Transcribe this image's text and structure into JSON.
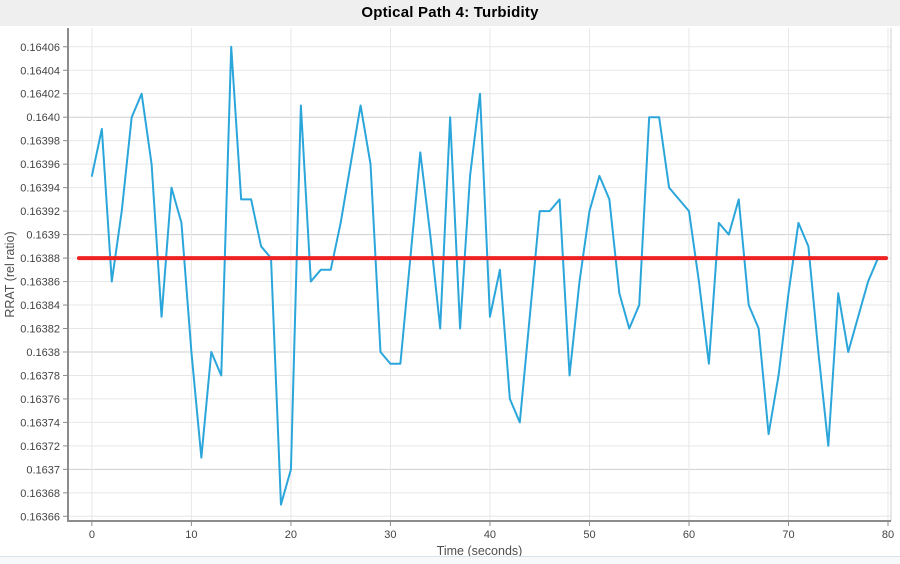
{
  "header": {
    "title": "Optical Path 4: Turbidity"
  },
  "chart_data": {
    "type": "line",
    "title": "Optical Path 4: Turbidity",
    "xlabel": "Time (seconds)",
    "ylabel": "RRAT (rel ratio)",
    "xlim": [
      -2.4,
      80.3
    ],
    "ylim": [
      0.163656,
      0.164076
    ],
    "grid": "on",
    "legend": "none",
    "x_tick_values": [
      0,
      10,
      20,
      30,
      40,
      50,
      60,
      70,
      80
    ],
    "x_tick_labels": [
      "0",
      "10",
      "20",
      "30",
      "40",
      "50",
      "60",
      "70",
      "80"
    ],
    "y_ticks": [
      {
        "value": 0.16406,
        "label": "0.16406",
        "major": false
      },
      {
        "value": 0.16404,
        "label": "0.16404",
        "major": false
      },
      {
        "value": 0.16402,
        "label": "0.16402",
        "major": false
      },
      {
        "value": 0.164,
        "label": "0.1640",
        "major": true
      },
      {
        "value": 0.16398,
        "label": "0.16398",
        "major": false
      },
      {
        "value": 0.16396,
        "label": "0.16396",
        "major": false
      },
      {
        "value": 0.16394,
        "label": "0.16394",
        "major": false
      },
      {
        "value": 0.16392,
        "label": "0.16392",
        "major": false
      },
      {
        "value": 0.1639,
        "label": "0.1639",
        "major": true
      },
      {
        "value": 0.16388,
        "label": "0.16388",
        "major": false
      },
      {
        "value": 0.16386,
        "label": "0.16386",
        "major": false
      },
      {
        "value": 0.16384,
        "label": "0.16384",
        "major": false
      },
      {
        "value": 0.16382,
        "label": "0.16382",
        "major": false
      },
      {
        "value": 0.1638,
        "label": "0.1638",
        "major": true
      },
      {
        "value": 0.16378,
        "label": "0.16378",
        "major": false
      },
      {
        "value": 0.16376,
        "label": "0.16376",
        "major": false
      },
      {
        "value": 0.16374,
        "label": "0.16374",
        "major": false
      },
      {
        "value": 0.16372,
        "label": "0.16372",
        "major": false
      },
      {
        "value": 0.1637,
        "label": "0.1637",
        "major": true
      },
      {
        "value": 0.16368,
        "label": "0.16368",
        "major": false
      },
      {
        "value": 0.16366,
        "label": "0.16366",
        "major": false
      }
    ],
    "series": [
      {
        "name": "turbidity-rrat",
        "color": "#2ba6db",
        "x_seconds": {
          "start": 0,
          "step": 1,
          "count": 80
        },
        "values": [
          0.16395,
          0.16399,
          0.16386,
          0.16392,
          0.164,
          0.16402,
          0.16396,
          0.16383,
          0.16394,
          0.16391,
          0.1638,
          0.16371,
          0.1638,
          0.16378,
          0.16406,
          0.16393,
          0.16393,
          0.16389,
          0.16388,
          0.16367,
          0.1637,
          0.16401,
          0.16386,
          0.16387,
          0.16387,
          0.16391,
          0.16396,
          0.16401,
          0.16396,
          0.1638,
          0.16379,
          0.16379,
          0.16388,
          0.16397,
          0.1639,
          0.16382,
          0.164,
          0.16382,
          0.16395,
          0.16402,
          0.16383,
          0.16387,
          0.16376,
          0.16374,
          0.16383,
          0.16392,
          0.16392,
          0.16393,
          0.16378,
          0.16386,
          0.16392,
          0.16395,
          0.16393,
          0.16385,
          0.16382,
          0.16384,
          0.164,
          0.164,
          0.16394,
          0.16393,
          0.16392,
          0.16386,
          0.16379,
          0.16391,
          0.1639,
          0.16393,
          0.16384,
          0.16382,
          0.16373,
          0.16378,
          0.16385,
          0.16391,
          0.16389,
          0.1638,
          0.16372,
          0.16385,
          0.1638,
          0.16383,
          0.16386,
          0.16388
        ]
      }
    ],
    "trend_line": {
      "name": "mean-trend",
      "color": "#ee2222",
      "value": 0.16388,
      "x_start": -1.3,
      "x_end": 79.8
    }
  },
  "style": {
    "title_bar_bg": "#efefef",
    "plot_bg": "#ffffff",
    "grid_minor": "#e7e7e7",
    "grid_major": "#cfcfcf",
    "plot_border": "#cfcfcf",
    "axis": "#8c8c8c",
    "tick_text": "#444444",
    "axis_title_text": "#4f4f4f",
    "footer_border": "#d7e3ec",
    "footer_bg": "#f7f9fa"
  }
}
